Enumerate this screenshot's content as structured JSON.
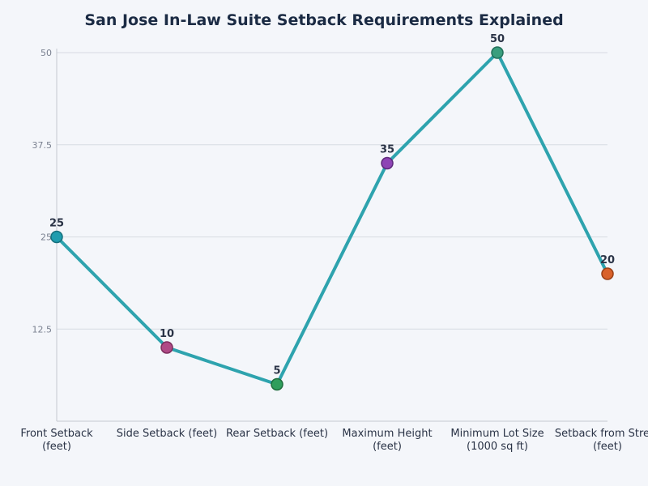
{
  "chart_data": {
    "type": "line",
    "title": "San Jose In-Law Suite Setback Requirements Explained",
    "xlabel": "",
    "ylabel": "",
    "categories": [
      [
        "Front Setback",
        "(feet)"
      ],
      [
        "Side Setback (feet)"
      ],
      [
        "Rear Setback (feet)"
      ],
      [
        "Maximum Height",
        "(feet)"
      ],
      [
        "Minimum Lot Size",
        "(1000 sq ft)"
      ],
      [
        "Setback from Street",
        "(feet)"
      ]
    ],
    "series": [
      {
        "values": [
          25,
          10,
          5,
          35,
          50,
          20
        ],
        "line_color": "#2ea3ae",
        "point_colors": [
          "#1f9cae",
          "#b04a86",
          "#2f9e5c",
          "#8e44b5",
          "#3a9e7e",
          "#d9622b"
        ],
        "point_edge_colors": [
          "#16707d",
          "#7d2d5c",
          "#1f6e3e",
          "#5e2a7c",
          "#22705a",
          "#9a4016"
        ]
      }
    ],
    "ylim": [
      0,
      50
    ],
    "yticks": [
      "12.5",
      "25",
      "37.5",
      "50"
    ],
    "grid": true,
    "data_labels": [
      "25",
      "10",
      "5",
      "35",
      "50",
      "20"
    ]
  }
}
